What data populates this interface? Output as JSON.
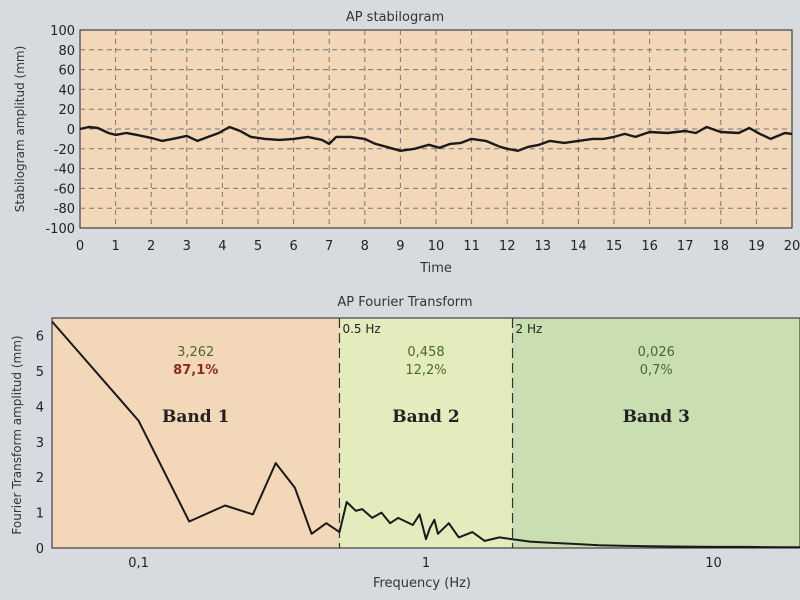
{
  "chart_data": [
    {
      "type": "line",
      "title": "AP stabilogram",
      "xlabel": "Time",
      "ylabel": "Stabilogram amplitud (mm)",
      "xlim": [
        0,
        20
      ],
      "ylim": [
        -100,
        100
      ],
      "xticks": [
        "0",
        "1",
        "2",
        "3",
        "4",
        "5",
        "6",
        "7",
        "8",
        "9",
        "10",
        "11",
        "12",
        "13",
        "14",
        "15",
        "16",
        "17",
        "18",
        "19",
        "20"
      ],
      "yticks": [
        "100",
        "80",
        "60",
        "40",
        "20",
        "0",
        "-20",
        "-40",
        "-60",
        "-80",
        "-100"
      ],
      "grid": true,
      "colors": {
        "background": "#f2d7b8",
        "line": "#1a1a1a",
        "grid": "#777777"
      },
      "series": [
        {
          "x": [
            0,
            0.25,
            0.5,
            0.8,
            1.0,
            1.3,
            1.6,
            2.0,
            2.3,
            2.6,
            3.0,
            3.3,
            3.6,
            3.9,
            4.2,
            4.5,
            4.8,
            5.2,
            5.6,
            6.0,
            6.4,
            6.8,
            7.0,
            7.2,
            7.6,
            8.0,
            8.3,
            8.6,
            9.0,
            9.4,
            9.8,
            10.1,
            10.4,
            10.7,
            11.0,
            11.4,
            11.8,
            12.0,
            12.3,
            12.6,
            12.9,
            13.2,
            13.6,
            14.0,
            14.4,
            14.7,
            15.0,
            15.3,
            15.6,
            16.0,
            16.5,
            17.0,
            17.3,
            17.6,
            18.0,
            18.5,
            18.8,
            19.1,
            19.4,
            19.8,
            20.0
          ],
          "values": [
            0,
            2,
            1,
            -4,
            -6,
            -4,
            -6,
            -9,
            -12,
            -10,
            -7,
            -12,
            -8,
            -4,
            2,
            -2,
            -8,
            -10,
            -11,
            -10,
            -8,
            -11,
            -15,
            -8,
            -8,
            -10,
            -15,
            -18,
            -22,
            -20,
            -16,
            -19,
            -15,
            -14,
            -10,
            -12,
            -18,
            -20,
            -22,
            -18,
            -16,
            -12,
            -14,
            -12,
            -10,
            -10,
            -8,
            -5,
            -8,
            -3,
            -4,
            -2,
            -4,
            2,
            -3,
            -4,
            1,
            -5,
            -10,
            -4,
            -5
          ]
        }
      ]
    },
    {
      "type": "line",
      "title": "AP Fourier Transform",
      "xlabel": "Frequency (Hz)",
      "ylabel": "Fourier Transform amplitud (mm)",
      "xscale": "log",
      "xlim": [
        0.05,
        20
      ],
      "ylim": [
        0,
        6.5
      ],
      "xticks": [
        "0,1",
        "1",
        "10"
      ],
      "yticks": [
        "0",
        "1",
        "2",
        "3",
        "4",
        "5",
        "6"
      ],
      "grid": false,
      "band_edges": [
        0.5,
        2
      ],
      "band_edge_labels": [
        "0.5 Hz",
        "2 Hz"
      ],
      "bands": [
        {
          "name": "Band 1",
          "value": "3,262",
          "percent": "87,1%",
          "color": "#f2d7b8"
        },
        {
          "name": "Band 2",
          "value": "0,458",
          "percent": "12,2%",
          "color": "#e4ecbe"
        },
        {
          "name": "Band 3",
          "value": "0,026",
          "percent": "0,7%",
          "color": "#c9dfb2"
        }
      ],
      "series": [
        {
          "x": [
            0.05,
            0.1,
            0.15,
            0.2,
            0.25,
            0.3,
            0.35,
            0.4,
            0.45,
            0.5,
            0.53,
            0.57,
            0.6,
            0.65,
            0.7,
            0.75,
            0.8,
            0.9,
            0.95,
            1.0,
            1.03,
            1.07,
            1.1,
            1.2,
            1.3,
            1.45,
            1.6,
            1.8,
            2.0,
            2.3,
            2.7,
            3.2,
            4,
            5,
            6,
            8,
            10,
            13,
            17,
            20
          ],
          "values": [
            6.4,
            3.6,
            0.75,
            1.2,
            0.95,
            2.4,
            1.7,
            0.4,
            0.7,
            0.45,
            1.3,
            1.05,
            1.1,
            0.85,
            1.0,
            0.7,
            0.85,
            0.65,
            0.95,
            0.25,
            0.55,
            0.8,
            0.4,
            0.7,
            0.3,
            0.45,
            0.2,
            0.3,
            0.25,
            0.18,
            0.15,
            0.12,
            0.08,
            0.06,
            0.05,
            0.04,
            0.03,
            0.03,
            0.02,
            0.02
          ]
        }
      ]
    }
  ]
}
